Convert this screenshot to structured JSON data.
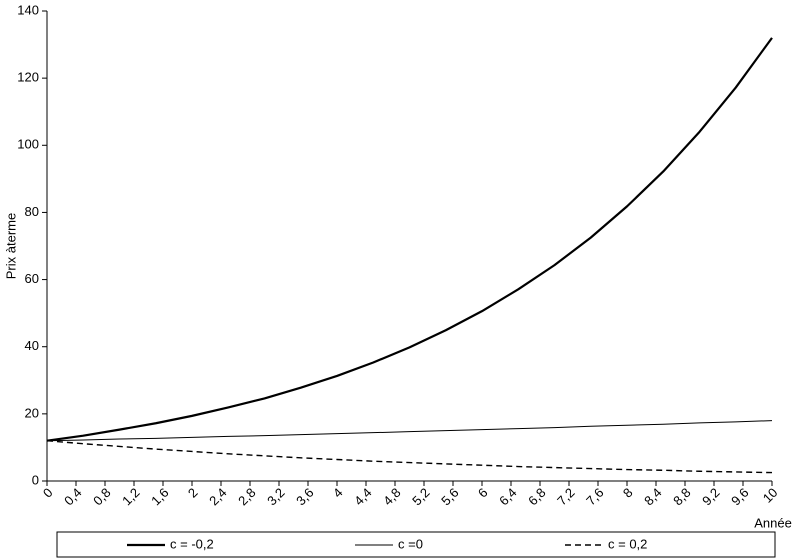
{
  "chart_data": {
    "type": "line",
    "y_label": "Prix àterme",
    "x_label": "Année",
    "x": [
      0,
      0.5,
      1,
      1.5,
      2,
      2.5,
      3,
      3.5,
      4,
      4.5,
      5,
      5.5,
      6,
      6.5,
      7,
      7.5,
      8,
      8.5,
      9,
      9.5,
      10
    ],
    "series": [
      {
        "name": "c = -0,2",
        "color": "#000000",
        "width": 2.2,
        "dash": false,
        "values": [
          12,
          13.5,
          15.3,
          17.2,
          19.4,
          21.9,
          24.6,
          27.8,
          31.3,
          35.3,
          39.8,
          44.9,
          50.6,
          57.1,
          64.3,
          72.5,
          81.8,
          92.2,
          104.0,
          117.2,
          132.0
        ]
      },
      {
        "name": "c =0",
        "color": "#000000",
        "width": 1,
        "dash": false,
        "values": [
          12,
          12.2,
          12.5,
          12.7,
          13.0,
          13.3,
          13.5,
          13.8,
          14.1,
          14.4,
          14.7,
          15.0,
          15.3,
          15.6,
          15.9,
          16.3,
          16.6,
          16.9,
          17.3,
          17.6,
          18.0
        ]
      },
      {
        "name": "c = 0,2",
        "color": "#000000",
        "width": 1.4,
        "dash": true,
        "values": [
          12,
          11.1,
          10.3,
          9.5,
          8.8,
          8.1,
          7.5,
          6.9,
          6.4,
          5.9,
          5.5,
          5.1,
          4.7,
          4.3,
          4.0,
          3.7,
          3.4,
          3.2,
          2.9,
          2.7,
          2.5
        ]
      }
    ],
    "xlim": [
      0,
      10
    ],
    "xticks": [
      0,
      {
        "value": 0.4,
        "label": "0,4"
      },
      {
        "value": 0.8,
        "label": "0,8"
      },
      {
        "value": 1.2,
        "label": "1,2"
      },
      {
        "value": 1.6,
        "label": "1,6"
      },
      2,
      {
        "value": 2.4,
        "label": "2,4"
      },
      {
        "value": 2.8,
        "label": "2,8"
      },
      {
        "value": 3.2,
        "label": "3,2"
      },
      {
        "value": 3.6,
        "label": "3,6"
      },
      4,
      {
        "value": 4.4,
        "label": "4,4"
      },
      {
        "value": 4.8,
        "label": "4,8"
      },
      {
        "value": 5.2,
        "label": "5,2"
      },
      {
        "value": 5.6,
        "label": "5,6"
      },
      6,
      {
        "value": 6.4,
        "label": "6,4"
      },
      {
        "value": 6.8,
        "label": "6,8"
      },
      {
        "value": 7.2,
        "label": "7,2"
      },
      {
        "value": 7.6,
        "label": "7,6"
      },
      8,
      {
        "value": 8.4,
        "label": "8,4"
      },
      {
        "value": 8.8,
        "label": "8,8"
      },
      {
        "value": 9.2,
        "label": "9,2"
      },
      {
        "value": 9.6,
        "label": "9,6"
      },
      10
    ],
    "ylim": [
      0,
      140
    ],
    "yticks": [
      0,
      20,
      40,
      60,
      80,
      100,
      120,
      140
    ],
    "grid": false,
    "legend": "bottom"
  }
}
